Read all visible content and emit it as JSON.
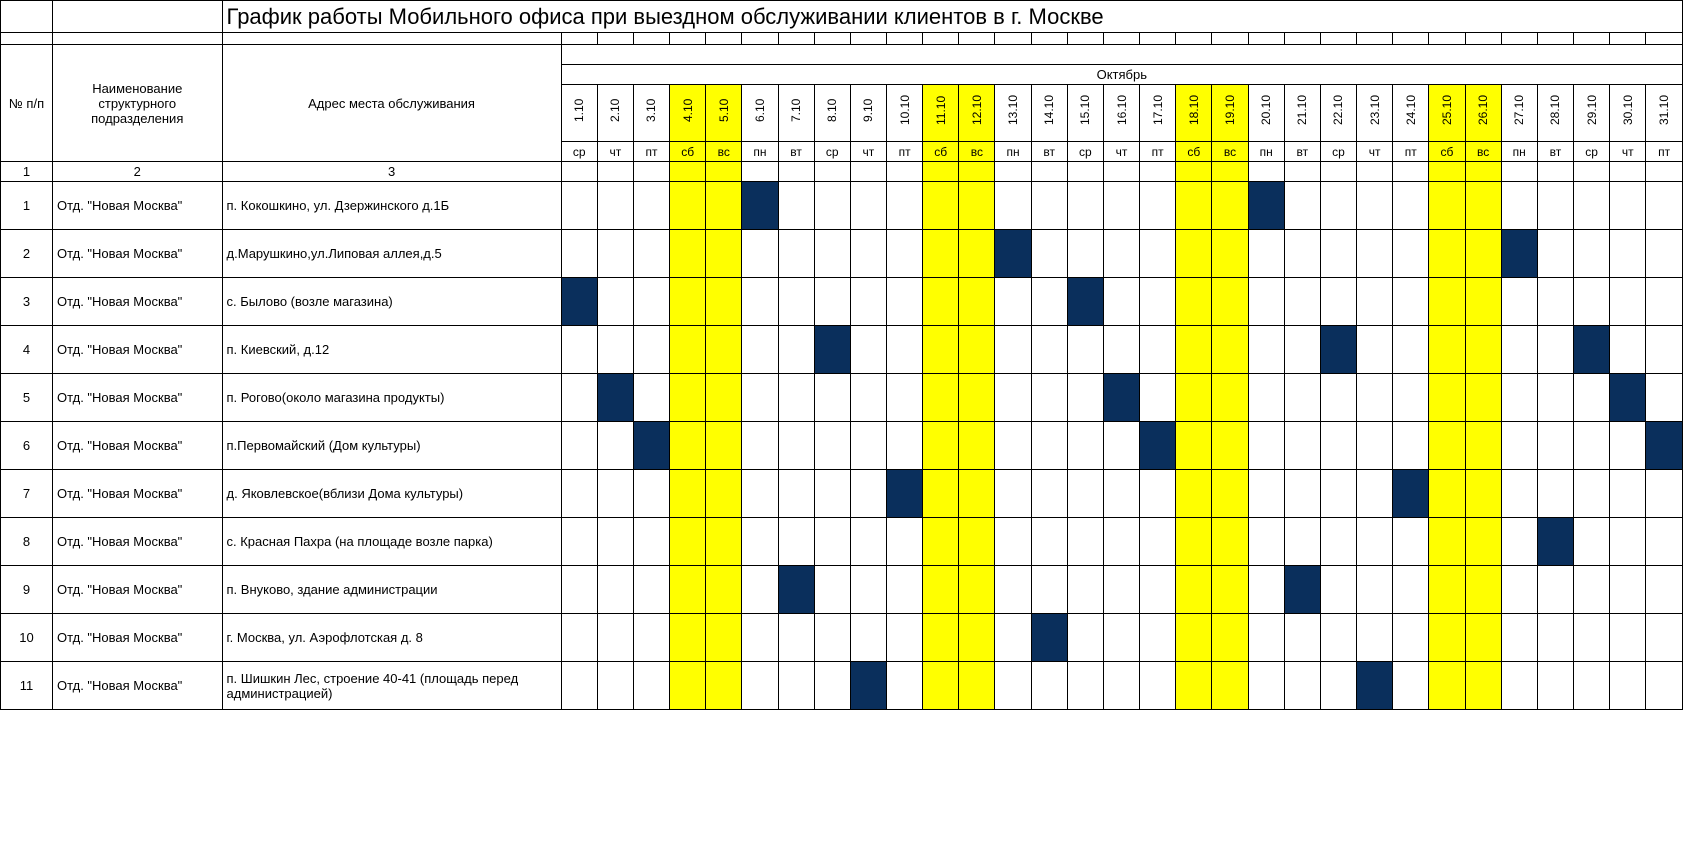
{
  "title": "График работы Мобильного офиса при выездном обслуживании клиентов в г. Москве",
  "month": "Октябрь",
  "colors": {
    "weekend_bg": "#ffff00",
    "filled_bg": "#0a2f5c",
    "border": "#000000",
    "background": "#ffffff"
  },
  "headers": {
    "num": "№ п/п",
    "dept": "Наименование структурного подразделения",
    "addr": "Адрес места обслуживания",
    "c1": "1",
    "c2": "2",
    "c3": "3"
  },
  "days": [
    {
      "date": "1.10",
      "dow": "ср",
      "weekend": false
    },
    {
      "date": "2.10",
      "dow": "чт",
      "weekend": false
    },
    {
      "date": "3.10",
      "dow": "пт",
      "weekend": false
    },
    {
      "date": "4.10",
      "dow": "сб",
      "weekend": true
    },
    {
      "date": "5.10",
      "dow": "вс",
      "weekend": true
    },
    {
      "date": "6.10",
      "dow": "пн",
      "weekend": false
    },
    {
      "date": "7.10",
      "dow": "вт",
      "weekend": false
    },
    {
      "date": "8.10",
      "dow": "ср",
      "weekend": false
    },
    {
      "date": "9.10",
      "dow": "чт",
      "weekend": false
    },
    {
      "date": "10.10",
      "dow": "пт",
      "weekend": false
    },
    {
      "date": "11.10",
      "dow": "сб",
      "weekend": true
    },
    {
      "date": "12.10",
      "dow": "вс",
      "weekend": true
    },
    {
      "date": "13.10",
      "dow": "пн",
      "weekend": false
    },
    {
      "date": "14.10",
      "dow": "вт",
      "weekend": false
    },
    {
      "date": "15.10",
      "dow": "ср",
      "weekend": false
    },
    {
      "date": "16.10",
      "dow": "чт",
      "weekend": false
    },
    {
      "date": "17.10",
      "dow": "пт",
      "weekend": false
    },
    {
      "date": "18.10",
      "dow": "сб",
      "weekend": true
    },
    {
      "date": "19.10",
      "dow": "вс",
      "weekend": true
    },
    {
      "date": "20.10",
      "dow": "пн",
      "weekend": false
    },
    {
      "date": "21.10",
      "dow": "вт",
      "weekend": false
    },
    {
      "date": "22.10",
      "dow": "ср",
      "weekend": false
    },
    {
      "date": "23.10",
      "dow": "чт",
      "weekend": false
    },
    {
      "date": "24.10",
      "dow": "пт",
      "weekend": false
    },
    {
      "date": "25.10",
      "dow": "сб",
      "weekend": true
    },
    {
      "date": "26.10",
      "dow": "вс",
      "weekend": true
    },
    {
      "date": "27.10",
      "dow": "пн",
      "weekend": false
    },
    {
      "date": "28.10",
      "dow": "вт",
      "weekend": false
    },
    {
      "date": "29.10",
      "dow": "ср",
      "weekend": false
    },
    {
      "date": "30.10",
      "dow": "чт",
      "weekend": false
    },
    {
      "date": "31.10",
      "dow": "пт",
      "weekend": false
    }
  ],
  "rows": [
    {
      "n": "1",
      "dept": "Отд. \"Новая Москва\"",
      "addr": "п. Кокошкино, ул. Дзержинского д.1Б",
      "marks": [
        6,
        20
      ]
    },
    {
      "n": "2",
      "dept": "Отд. \"Новая Москва\"",
      "addr": " д.Марушкино,ул.Липовая аллея,д.5",
      "marks": [
        13,
        27
      ]
    },
    {
      "n": "3",
      "dept": "Отд. \"Новая Москва\"",
      "addr": "с. Былово (возле магазина)",
      "marks": [
        1,
        15
      ]
    },
    {
      "n": "4",
      "dept": "Отд. \"Новая Москва\"",
      "addr": "п. Киевский, д.12",
      "marks": [
        8,
        22,
        29
      ]
    },
    {
      "n": "5",
      "dept": "Отд. \"Новая Москва\"",
      "addr": "п. Рогово(около магазина продукты)",
      "marks": [
        2,
        16,
        30
      ]
    },
    {
      "n": "6",
      "dept": "Отд. \"Новая Москва\"",
      "addr": "п.Первомайский (Дом культуры)",
      "marks": [
        3,
        17,
        31
      ]
    },
    {
      "n": "7",
      "dept": "Отд. \"Новая Москва\"",
      "addr": "д. Яковлевское(вблизи Дома культуры)",
      "marks": [
        10,
        24
      ]
    },
    {
      "n": "8",
      "dept": "Отд. \"Новая Москва\"",
      "addr": "с. Красная Пахра (на площаде возле парка)",
      "marks": [
        28
      ]
    },
    {
      "n": "9",
      "dept": "Отд. \"Новая Москва\"",
      "addr": "п. Внуково, здание администрации",
      "marks": [
        7,
        21
      ]
    },
    {
      "n": "10",
      "dept": "Отд. \"Новая Москва\"",
      "addr": "г. Москва, ул. Аэрофлотская д. 8",
      "marks": [
        14
      ]
    },
    {
      "n": "11",
      "dept": "Отд. \"Новая Москва\"",
      "addr": "п. Шишкин Лес, строение 40-41 (площадь перед администрацией)",
      "marks": [
        9,
        23
      ]
    }
  ]
}
